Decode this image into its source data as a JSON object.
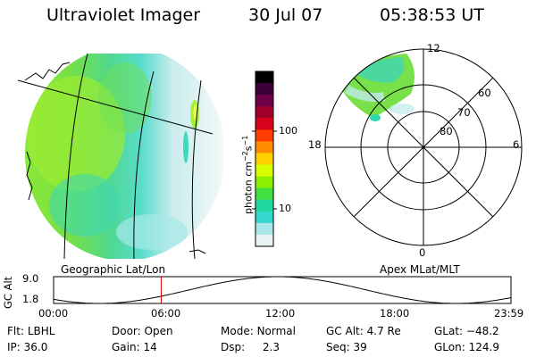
{
  "header": {
    "instrument": "Ultraviolet Imager",
    "date": "30 Jul 07",
    "time": "05:38:53 UT"
  },
  "colorbar": {
    "unit_text": "photon cm",
    "unit_exp1": "−2",
    "unit_mid": "s",
    "unit_exp2": "−1",
    "ticks": [
      "100",
      "10"
    ],
    "colors": [
      "#000000",
      "#3a0038",
      "#6e0048",
      "#a0002a",
      "#d8001a",
      "#ff3b00",
      "#ff8c00",
      "#ffd000",
      "#d8ff00",
      "#8cf000",
      "#40e040",
      "#20d8a0",
      "#38d8d0",
      "#a8e8e8",
      "#e8f4f4"
    ]
  },
  "left_panel": {
    "label": "Geographic Lat/Lon"
  },
  "right_panel": {
    "label": "Apex MLat/MLT",
    "mlt_labels": {
      "top": "12",
      "left": "18",
      "right": "6",
      "bottom": "0"
    },
    "lat_labels": [
      "60",
      "70",
      "80"
    ]
  },
  "timeline": {
    "axis_label": "GC Alt",
    "y_top": "9.0",
    "y_bottom": "1.8",
    "x_ticks": [
      "00:00",
      "06:00",
      "12:00",
      "18:00",
      "23:59"
    ],
    "current_time_fraction": 0.2353
  },
  "status": {
    "row1": [
      {
        "label": "Flt:",
        "value": "LBHL"
      },
      {
        "label": "Door:",
        "value": "Open"
      },
      {
        "label": "Mode:",
        "value": "Normal"
      },
      {
        "label": "GC Alt:",
        "value": "4.7 Re"
      },
      {
        "label": "GLat:",
        "value": "−48.2"
      }
    ],
    "row2": [
      {
        "label": "IP:",
        "value": "36.0"
      },
      {
        "label": "Gain:",
        "value": "14"
      },
      {
        "label": "Dsp:",
        "value": "2.3"
      },
      {
        "label": "Seq:",
        "value": "39"
      },
      {
        "label": "GLon:",
        "value": "124.9"
      }
    ]
  }
}
